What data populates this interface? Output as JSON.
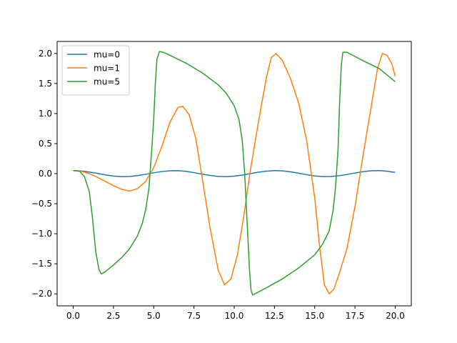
{
  "chart_data": {
    "type": "line",
    "title": "",
    "xlabel": "",
    "ylabel": "",
    "xlim": [
      -1.0,
      21.0
    ],
    "ylim": [
      -2.2,
      2.2
    ],
    "x_ticks": [
      0,
      2.5,
      5,
      7.5,
      10,
      12.5,
      15,
      17.5,
      20
    ],
    "x_tick_labels": [
      "0.0",
      "2.5",
      "5.0",
      "7.5",
      "10.0",
      "12.5",
      "15.0",
      "17.5",
      "20.0"
    ],
    "y_ticks": [
      -2,
      -1.5,
      -1,
      -0.5,
      0,
      0.5,
      1,
      1.5,
      2
    ],
    "y_tick_labels": [
      "−2.0",
      "−1.5",
      "−1.0",
      "−0.5",
      "0.0",
      "0.5",
      "1.0",
      "1.5",
      "2.0"
    ],
    "grid": false,
    "legend_position": "upper-left",
    "series": [
      {
        "name": "mu=0",
        "color": "#1f77b4",
        "points": [
          [
            0,
            0.05
          ],
          [
            0.5,
            0.044
          ],
          [
            1.0,
            0.027
          ],
          [
            1.5,
            0.004
          ],
          [
            2.0,
            -0.021
          ],
          [
            2.5,
            -0.04
          ],
          [
            3.0,
            -0.05
          ],
          [
            3.5,
            -0.047
          ],
          [
            4.0,
            -0.033
          ],
          [
            4.5,
            -0.011
          ],
          [
            5.0,
            0.014
          ],
          [
            5.5,
            0.035
          ],
          [
            6.0,
            0.048
          ],
          [
            6.5,
            0.049
          ],
          [
            7.0,
            0.038
          ],
          [
            7.5,
            0.017
          ],
          [
            8.0,
            -0.007
          ],
          [
            8.5,
            -0.03
          ],
          [
            9.0,
            -0.046
          ],
          [
            9.5,
            -0.05
          ],
          [
            10.0,
            -0.042
          ],
          [
            10.5,
            -0.024
          ],
          [
            11.0,
            0.0
          ],
          [
            11.5,
            0.024
          ],
          [
            12.0,
            0.042
          ],
          [
            12.5,
            0.05
          ],
          [
            13.0,
            0.046
          ],
          [
            13.5,
            0.03
          ],
          [
            14.0,
            0.007
          ],
          [
            14.5,
            -0.017
          ],
          [
            15.0,
            -0.038
          ],
          [
            15.5,
            -0.049
          ],
          [
            16.0,
            -0.048
          ],
          [
            16.5,
            -0.035
          ],
          [
            17.0,
            -0.014
          ],
          [
            17.5,
            0.011
          ],
          [
            18.0,
            0.033
          ],
          [
            18.5,
            0.047
          ],
          [
            19.0,
            0.05
          ],
          [
            19.5,
            0.04
          ],
          [
            20.0,
            0.021
          ]
        ]
      },
      {
        "name": "mu=1",
        "color": "#ff7f0e",
        "points": [
          [
            0,
            0.05
          ],
          [
            0.5,
            0.04
          ],
          [
            1.0,
            0.0
          ],
          [
            1.5,
            -0.06
          ],
          [
            2.0,
            -0.13
          ],
          [
            2.5,
            -0.2
          ],
          [
            3.0,
            -0.26
          ],
          [
            3.5,
            -0.29
          ],
          [
            4.0,
            -0.25
          ],
          [
            4.5,
            -0.13
          ],
          [
            5.0,
            0.1
          ],
          [
            5.5,
            0.45
          ],
          [
            6.0,
            0.85
          ],
          [
            6.5,
            1.1
          ],
          [
            6.8,
            1.12
          ],
          [
            7.2,
            0.98
          ],
          [
            7.6,
            0.6
          ],
          [
            8.0,
            -0.05
          ],
          [
            8.5,
            -0.9
          ],
          [
            9.0,
            -1.6
          ],
          [
            9.4,
            -1.85
          ],
          [
            9.8,
            -1.75
          ],
          [
            10.2,
            -1.35
          ],
          [
            10.6,
            -0.7
          ],
          [
            11.0,
            0.05
          ],
          [
            11.5,
            0.85
          ],
          [
            12.0,
            1.6
          ],
          [
            12.3,
            1.93
          ],
          [
            12.6,
            2.0
          ],
          [
            13.0,
            1.88
          ],
          [
            13.5,
            1.58
          ],
          [
            14.0,
            1.18
          ],
          [
            14.5,
            0.55
          ],
          [
            15.0,
            -0.4
          ],
          [
            15.3,
            -1.2
          ],
          [
            15.6,
            -1.85
          ],
          [
            15.9,
            -2.0
          ],
          [
            16.2,
            -1.92
          ],
          [
            16.6,
            -1.6
          ],
          [
            17.0,
            -1.25
          ],
          [
            17.5,
            -0.55
          ],
          [
            18.0,
            0.3
          ],
          [
            18.5,
            1.1
          ],
          [
            18.9,
            1.75
          ],
          [
            19.2,
            2.0
          ],
          [
            19.5,
            1.97
          ],
          [
            19.8,
            1.82
          ],
          [
            20.0,
            1.62
          ]
        ]
      },
      {
        "name": "mu=5",
        "color": "#2ca02c",
        "points": [
          [
            0,
            0.05
          ],
          [
            0.4,
            0.04
          ],
          [
            0.7,
            -0.05
          ],
          [
            1.0,
            -0.3
          ],
          [
            1.2,
            -0.75
          ],
          [
            1.4,
            -1.3
          ],
          [
            1.6,
            -1.6
          ],
          [
            1.75,
            -1.67
          ],
          [
            2.0,
            -1.63
          ],
          [
            2.5,
            -1.52
          ],
          [
            3.0,
            -1.4
          ],
          [
            3.5,
            -1.25
          ],
          [
            4.0,
            -1.03
          ],
          [
            4.3,
            -0.82
          ],
          [
            4.5,
            -0.6
          ],
          [
            4.7,
            -0.25
          ],
          [
            4.85,
            0.3
          ],
          [
            5.0,
            0.9
          ],
          [
            5.1,
            1.5
          ],
          [
            5.2,
            1.9
          ],
          [
            5.35,
            2.03
          ],
          [
            5.6,
            2.02
          ],
          [
            6.0,
            1.97
          ],
          [
            7.0,
            1.84
          ],
          [
            8.0,
            1.68
          ],
          [
            9.0,
            1.48
          ],
          [
            9.5,
            1.34
          ],
          [
            10.0,
            1.13
          ],
          [
            10.3,
            0.9
          ],
          [
            10.5,
            0.55
          ],
          [
            10.65,
            0.0
          ],
          [
            10.8,
            -0.8
          ],
          [
            10.95,
            -1.6
          ],
          [
            11.05,
            -1.95
          ],
          [
            11.15,
            -2.02
          ],
          [
            11.5,
            -1.97
          ],
          [
            12.0,
            -1.9
          ],
          [
            13.0,
            -1.75
          ],
          [
            14.0,
            -1.57
          ],
          [
            15.0,
            -1.35
          ],
          [
            15.5,
            -1.17
          ],
          [
            15.9,
            -0.95
          ],
          [
            16.15,
            -0.6
          ],
          [
            16.3,
            -0.2
          ],
          [
            16.45,
            0.4
          ],
          [
            16.55,
            1.2
          ],
          [
            16.65,
            1.8
          ],
          [
            16.75,
            2.02
          ],
          [
            17.0,
            2.02
          ],
          [
            17.5,
            1.95
          ],
          [
            18.0,
            1.88
          ],
          [
            19.0,
            1.75
          ],
          [
            20.0,
            1.53
          ]
        ]
      }
    ]
  }
}
